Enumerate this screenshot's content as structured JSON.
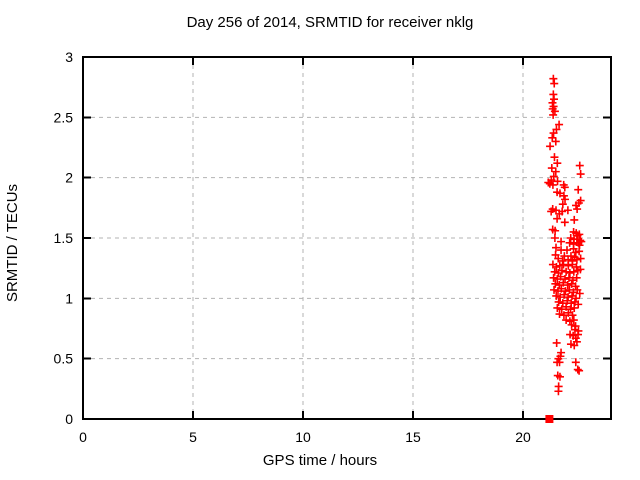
{
  "page": {
    "background": "#ffffff",
    "kind": "gnuplot-style scatter plot image"
  },
  "chart_data": {
    "type": "scatter",
    "title": "Day 256 of 2014, SRMTID for receiver nklg",
    "xlabel": "GPS time / hours",
    "ylabel": "SRMTID / TECUs",
    "xlim": [
      0,
      24
    ],
    "ylim": [
      0,
      3
    ],
    "xticks": [
      0,
      5,
      10,
      15,
      20
    ],
    "xtick_labels": [
      "0",
      "5",
      "10",
      "15",
      "20"
    ],
    "yticks": [
      0,
      0.5,
      1,
      1.5,
      2,
      2.5,
      3
    ],
    "ytick_labels": [
      "0",
      "0.5",
      "1",
      "1.5",
      "2",
      "2.5",
      "3"
    ],
    "grid": "dashed gray at all major ticks",
    "legend_position": "none",
    "colors": {
      "marker": "#ff0000",
      "grid": "#b3b3b3",
      "border": "#000000",
      "text": "#000000"
    },
    "series": [
      {
        "name": "SRMTID",
        "marker": "plus",
        "color": "#ff0000",
        "points": [
          [
            21.38,
            2.82
          ],
          [
            21.42,
            2.78
          ],
          [
            21.38,
            2.69
          ],
          [
            21.41,
            2.65
          ],
          [
            21.34,
            2.62
          ],
          [
            21.39,
            2.59
          ],
          [
            21.35,
            2.57
          ],
          [
            21.45,
            2.55
          ],
          [
            21.37,
            2.52
          ],
          [
            21.64,
            2.44
          ],
          [
            21.52,
            2.4
          ],
          [
            21.39,
            2.37
          ],
          [
            21.33,
            2.33
          ],
          [
            21.49,
            2.3
          ],
          [
            21.23,
            2.26
          ],
          [
            21.43,
            2.17
          ],
          [
            21.56,
            2.12
          ],
          [
            22.58,
            2.1
          ],
          [
            22.62,
            2.03
          ],
          [
            21.31,
            2.08
          ],
          [
            21.49,
            2.05
          ],
          [
            21.4,
            2.01
          ],
          [
            21.29,
            1.98
          ],
          [
            21.57,
            1.97
          ],
          [
            21.15,
            1.96
          ],
          [
            21.22,
            1.95
          ],
          [
            21.36,
            1.94
          ],
          [
            21.85,
            1.94
          ],
          [
            21.9,
            1.92
          ],
          [
            22.51,
            1.9
          ],
          [
            21.55,
            1.88
          ],
          [
            21.68,
            1.87
          ],
          [
            21.86,
            1.85
          ],
          [
            21.91,
            1.82
          ],
          [
            22.62,
            1.81
          ],
          [
            21.81,
            1.78
          ],
          [
            22.41,
            1.77
          ],
          [
            22.54,
            1.79
          ],
          [
            21.35,
            1.74
          ],
          [
            21.5,
            1.73
          ],
          [
            22.04,
            1.73
          ],
          [
            22.46,
            1.74
          ],
          [
            21.28,
            1.72
          ],
          [
            21.78,
            1.72
          ],
          [
            21.65,
            1.7
          ],
          [
            21.55,
            1.66
          ],
          [
            21.9,
            1.63
          ],
          [
            22.33,
            1.65
          ],
          [
            21.35,
            1.57
          ],
          [
            21.46,
            1.56
          ],
          [
            22.3,
            1.55
          ],
          [
            22.42,
            1.54
          ],
          [
            22.56,
            1.53
          ],
          [
            22.48,
            1.52
          ],
          [
            21.45,
            1.5
          ],
          [
            22.17,
            1.5
          ],
          [
            22.32,
            1.49
          ],
          [
            22.45,
            1.49
          ],
          [
            22.6,
            1.48
          ],
          [
            21.73,
            1.47
          ],
          [
            22.12,
            1.46
          ],
          [
            22.52,
            1.46
          ],
          [
            22.65,
            1.47
          ],
          [
            22.3,
            1.45
          ],
          [
            22.57,
            1.44
          ],
          [
            21.5,
            1.42
          ],
          [
            21.73,
            1.4
          ],
          [
            22.0,
            1.4
          ],
          [
            22.3,
            1.41
          ],
          [
            22.55,
            1.39
          ],
          [
            21.48,
            1.36
          ],
          [
            21.88,
            1.35
          ],
          [
            22.18,
            1.35
          ],
          [
            22.4,
            1.38
          ],
          [
            22.35,
            1.34
          ],
          [
            21.6,
            1.33
          ],
          [
            22.62,
            1.33
          ],
          [
            21.8,
            1.31
          ],
          [
            22.05,
            1.32
          ],
          [
            22.25,
            1.31
          ],
          [
            22.45,
            1.32
          ],
          [
            21.36,
            1.28
          ],
          [
            21.52,
            1.26
          ],
          [
            21.67,
            1.27
          ],
          [
            21.84,
            1.28
          ],
          [
            22.06,
            1.27
          ],
          [
            22.24,
            1.28
          ],
          [
            22.43,
            1.26
          ],
          [
            21.44,
            1.22
          ],
          [
            21.61,
            1.21
          ],
          [
            21.77,
            1.23
          ],
          [
            21.96,
            1.22
          ],
          [
            22.13,
            1.21
          ],
          [
            22.31,
            1.22
          ],
          [
            22.49,
            1.23
          ],
          [
            22.61,
            1.24
          ],
          [
            21.39,
            1.17
          ],
          [
            21.56,
            1.16
          ],
          [
            21.71,
            1.18
          ],
          [
            21.91,
            1.16
          ],
          [
            22.09,
            1.17
          ],
          [
            22.27,
            1.15
          ],
          [
            22.44,
            1.17
          ],
          [
            21.47,
            1.12
          ],
          [
            21.65,
            1.11
          ],
          [
            21.83,
            1.13
          ],
          [
            22.03,
            1.11
          ],
          [
            22.21,
            1.12
          ],
          [
            22.39,
            1.1
          ],
          [
            21.41,
            1.07
          ],
          [
            21.59,
            1.06
          ],
          [
            21.74,
            1.08
          ],
          [
            21.93,
            1.06
          ],
          [
            22.11,
            1.07
          ],
          [
            22.29,
            1.05
          ],
          [
            22.47,
            1.07
          ],
          [
            22.58,
            1.04
          ],
          [
            21.51,
            1.02
          ],
          [
            21.69,
            1.01
          ],
          [
            21.87,
            1.03
          ],
          [
            22.05,
            1.01
          ],
          [
            22.23,
            1.02
          ],
          [
            22.41,
            1.0
          ],
          [
            21.62,
            0.97
          ],
          [
            21.81,
            0.96
          ],
          [
            22.01,
            0.98
          ],
          [
            22.19,
            0.96
          ],
          [
            22.36,
            0.97
          ],
          [
            22.51,
            0.95
          ],
          [
            21.56,
            0.92
          ],
          [
            21.76,
            0.91
          ],
          [
            21.96,
            0.93
          ],
          [
            22.16,
            0.91
          ],
          [
            22.33,
            0.92
          ],
          [
            21.66,
            0.87
          ],
          [
            21.86,
            0.86
          ],
          [
            22.06,
            0.88
          ],
          [
            22.25,
            0.86
          ],
          [
            21.96,
            0.82
          ],
          [
            22.13,
            0.81
          ],
          [
            22.31,
            0.82
          ],
          [
            22.21,
            0.78
          ],
          [
            22.39,
            0.77
          ],
          [
            22.36,
            0.74
          ],
          [
            22.52,
            0.73
          ],
          [
            22.14,
            0.7
          ],
          [
            22.28,
            0.69
          ],
          [
            22.5,
            0.7
          ],
          [
            22.4,
            0.67
          ],
          [
            21.53,
            0.63
          ],
          [
            22.18,
            0.62
          ],
          [
            22.33,
            0.61
          ],
          [
            22.45,
            0.64
          ],
          [
            21.73,
            0.55
          ],
          [
            21.7,
            0.52
          ],
          [
            21.61,
            0.5
          ],
          [
            21.55,
            0.47
          ],
          [
            21.66,
            0.47
          ],
          [
            22.4,
            0.47
          ],
          [
            22.49,
            0.41
          ],
          [
            22.55,
            0.4
          ],
          [
            21.58,
            0.36
          ],
          [
            21.68,
            0.35
          ],
          [
            21.62,
            0.27
          ],
          [
            21.61,
            0.23
          ]
        ]
      },
      {
        "name": "axis-flag",
        "marker": "filled-square",
        "color": "#ff0000",
        "points": [
          [
            21.2,
            0.0
          ]
        ]
      }
    ]
  }
}
